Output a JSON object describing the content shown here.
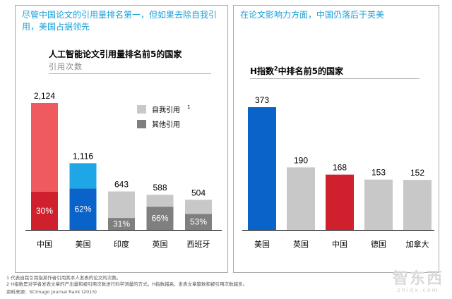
{
  "left_panel": {
    "headline": "尽管中国论文的引用量排名第一，但如果去除自我引用，美国占据领先"
  },
  "right_panel": {
    "headline": "在论文影响力方面，中国仍落后于英美"
  },
  "footer": {
    "note1": "1 代表自我引用指某作者引用其本人发表的论文的次数。",
    "note2": "2 H指数是对学者发表文章的产出量和被引用次数进行科学测量的方式。H指数越高，发表文章篇数和被引用次数越多。",
    "source": "资料来源：SCImago Journal Rank (2015)"
  },
  "watermark": {
    "main": "智东西",
    "sub": "zhidx.com"
  },
  "chart_data": [
    {
      "type": "bar",
      "stacked": true,
      "title": "人工智能论文引用量排名前5的国家",
      "subtitle": "引用次数",
      "categories": [
        "中国",
        "美国",
        "印度",
        "英国",
        "西班牙"
      ],
      "totals": [
        2124,
        1116,
        643,
        588,
        504
      ],
      "total_labels": [
        "2,124",
        "1,116",
        "643",
        "588",
        "504"
      ],
      "other_share_labels": [
        "30%",
        "62%",
        "31%",
        "66%",
        "53%"
      ],
      "other_share": [
        0.3,
        0.62,
        0.31,
        0.66,
        0.53
      ],
      "legend": {
        "self_label": "自我引用",
        "self_sup": "1",
        "other_label": "其他引用",
        "placement": "right"
      },
      "colors": {
        "self": [
          "#ef5a5f",
          "#1ea6e6",
          "#c8c8c8",
          "#c8c8c8",
          "#c8c8c8"
        ],
        "other": [
          "#d0202e",
          "#0a63c8",
          "#7f7f7f",
          "#7f7f7f",
          "#7f7f7f"
        ],
        "legend_self": "#c8c8c8",
        "legend_other": "#7f7f7f"
      },
      "ylim": [
        0,
        2124
      ],
      "grid": false
    },
    {
      "type": "bar",
      "title_prefix": "H指数",
      "title_sup": "2",
      "title_suffix": "中排名前5的国家",
      "categories": [
        "美国",
        "英国",
        "中国",
        "德国",
        "加拿大"
      ],
      "values": [
        373,
        190,
        168,
        153,
        152
      ],
      "colors": [
        "#0a63c8",
        "#c8c8c8",
        "#d0202e",
        "#c8c8c8",
        "#c8c8c8"
      ],
      "ylim": [
        0,
        373
      ],
      "grid": false
    }
  ]
}
